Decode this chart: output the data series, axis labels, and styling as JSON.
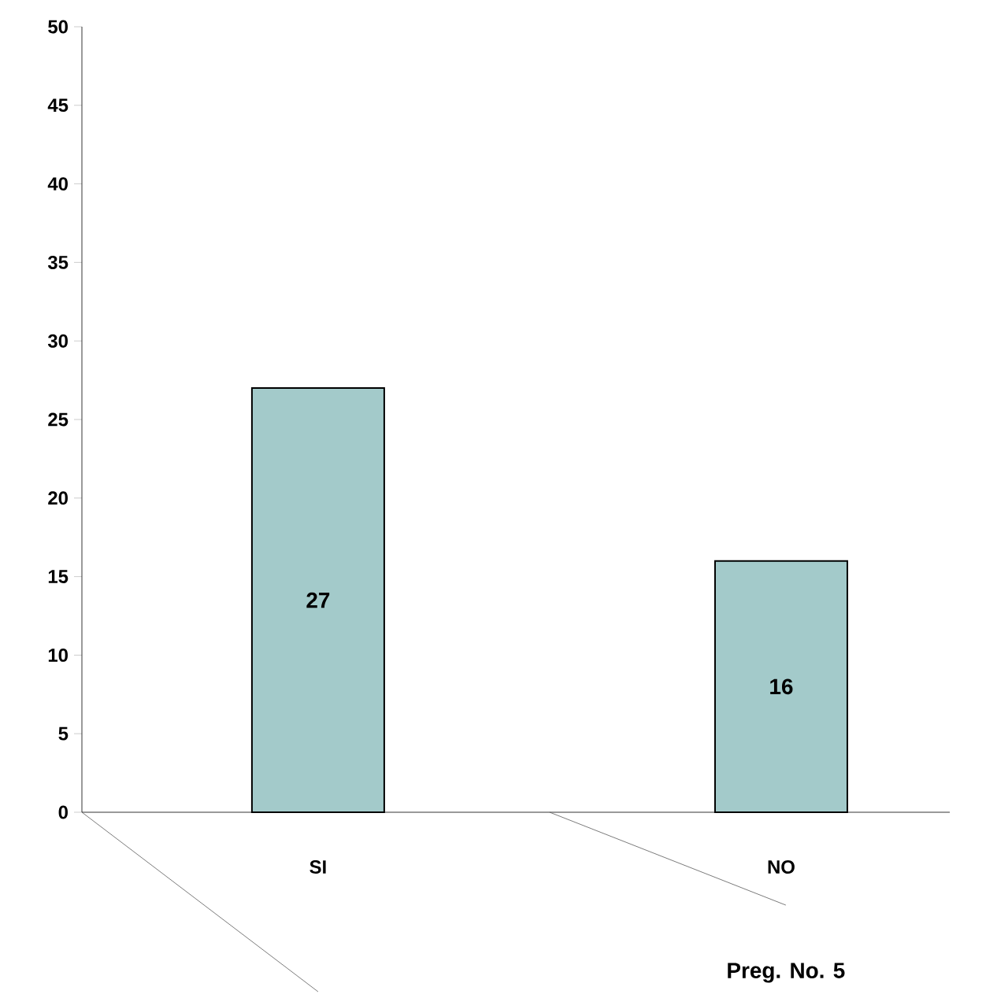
{
  "chart_data": {
    "type": "bar",
    "xlabel": "Preg. No. 5",
    "categories": [
      "SI",
      "NO"
    ],
    "values": [
      27,
      16
    ],
    "color": "#a3caca",
    "ylim": [
      0,
      50
    ],
    "yticks": [
      0,
      5,
      10,
      15,
      20,
      25,
      30,
      35,
      40,
      45,
      50
    ],
    "data_labels": true,
    "grid": false
  }
}
